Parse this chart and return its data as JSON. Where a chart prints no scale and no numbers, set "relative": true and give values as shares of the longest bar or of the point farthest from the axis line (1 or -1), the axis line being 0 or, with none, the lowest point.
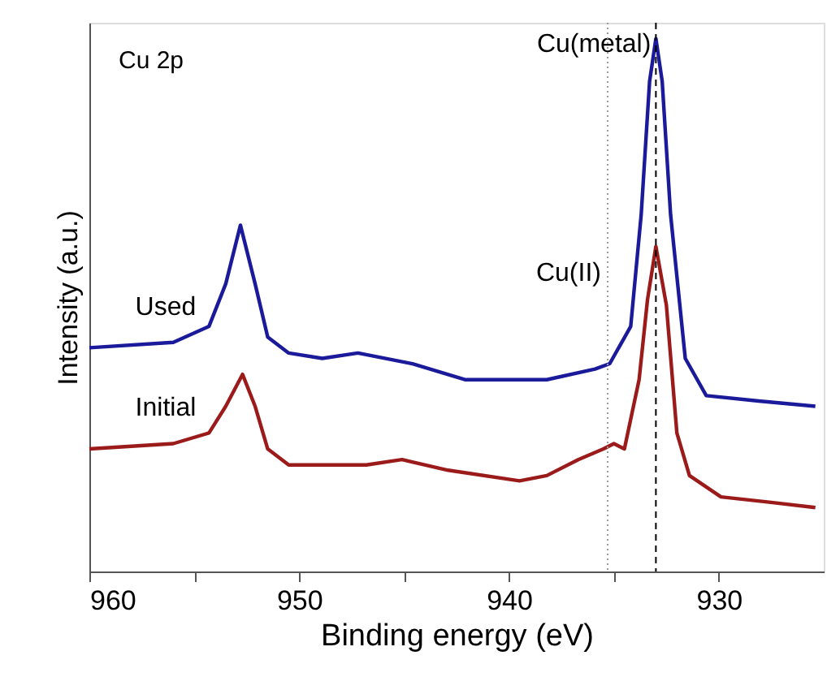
{
  "chart_data": {
    "type": "line",
    "relative": true,
    "xlabel": "Binding energy (eV)",
    "ylabel": "Intensity (a.u.)",
    "annotations": [
      "Cu 2p"
    ],
    "xlim": [
      960,
      925
    ],
    "xticks": [
      960,
      {
        "value": 955,
        "label": null
      },
      950,
      {
        "value": 945,
        "label": null
      },
      940,
      {
        "value": 935,
        "label": null
      },
      930
    ],
    "grid": false,
    "legend": false,
    "line_style": "solid",
    "marker": "none",
    "ref_lines": [
      {
        "axis": "x",
        "value": 933.0,
        "label": "Cu(metal)",
        "color": "#000000",
        "line_style": "dashed"
      },
      {
        "axis": "x",
        "value": 935.3,
        "label": "Cu(II)",
        "color": "#999999",
        "line_style": "dotted"
      }
    ],
    "series": [
      {
        "name": "Used",
        "color": "#1a1a9a",
        "x": [
          960,
          956,
          954.3,
          953.5,
          952.8,
          952.1,
          951.5,
          950.5,
          948.9,
          947.2,
          944.6,
          942.1,
          938.2,
          935.9,
          935.2,
          934.2,
          933.7,
          933.3,
          933.0,
          932.7,
          932.3,
          931.6,
          930.6,
          928.1,
          925.4
        ],
        "values": [
          0.42,
          0.43,
          0.46,
          0.54,
          0.65,
          0.54,
          0.44,
          0.41,
          0.4,
          0.41,
          0.39,
          0.36,
          0.36,
          0.38,
          0.39,
          0.46,
          0.67,
          0.92,
          1.0,
          0.92,
          0.67,
          0.4,
          0.33,
          0.32,
          0.31
        ]
      },
      {
        "name": "Initial",
        "color": "#9b1b1b",
        "x": [
          960,
          956,
          954.3,
          953.5,
          952.7,
          952.1,
          951.5,
          950.5,
          948.4,
          946.8,
          945.1,
          942.9,
          939.5,
          938.2,
          936.7,
          935.5,
          935.0,
          934.5,
          933.8,
          933.4,
          933.0,
          932.5,
          932.0,
          931.4,
          929.9,
          927.6,
          925.4
        ],
        "values": [
          0.23,
          0.24,
          0.26,
          0.31,
          0.37,
          0.31,
          0.23,
          0.2,
          0.2,
          0.2,
          0.21,
          0.19,
          0.17,
          0.18,
          0.21,
          0.23,
          0.24,
          0.23,
          0.36,
          0.51,
          0.61,
          0.5,
          0.26,
          0.18,
          0.14,
          0.13,
          0.12
        ]
      }
    ]
  }
}
